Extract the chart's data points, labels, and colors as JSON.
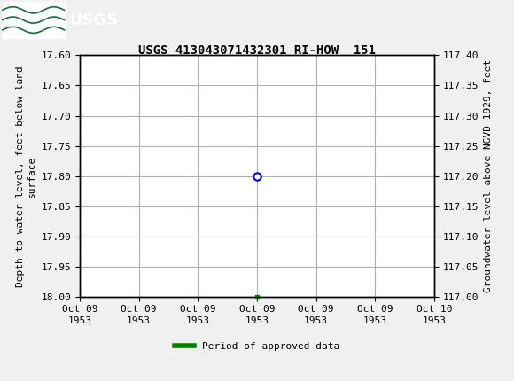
{
  "title": "USGS 413043071432301 RI-HOW  151",
  "left_ylabel": "Depth to water level, feet below land\nsurface",
  "right_ylabel": "Groundwater level above NGVD 1929, feet",
  "ylim_left": [
    17.6,
    18.0
  ],
  "ylim_right": [
    117.0,
    117.4
  ],
  "yticks_left": [
    17.6,
    17.65,
    17.7,
    17.75,
    17.8,
    17.85,
    17.9,
    17.95,
    18.0
  ],
  "yticks_right": [
    117.4,
    117.35,
    117.3,
    117.25,
    117.2,
    117.15,
    117.1,
    117.05,
    117.0
  ],
  "xtick_labels": [
    "Oct 09\n1953",
    "Oct 09\n1953",
    "Oct 09\n1953",
    "Oct 09\n1953",
    "Oct 09\n1953",
    "Oct 09\n1953",
    "Oct 10\n1953"
  ],
  "data_point_x": 3.0,
  "data_point_y": 17.8,
  "green_point_x": 3.0,
  "green_point_y": 18.0,
  "header_color": "#1a6b3c",
  "grid_color": "#b0b0b0",
  "bg_color": "#f0f0f0",
  "plot_bg_color": "#ffffff",
  "font_color": "#000000",
  "circle_color": "#0000cc",
  "green_color": "#008000",
  "legend_label": "Period of approved data",
  "mono_font": "DejaVu Sans Mono",
  "num_xticks": 7,
  "xmin": 0,
  "xmax": 6
}
